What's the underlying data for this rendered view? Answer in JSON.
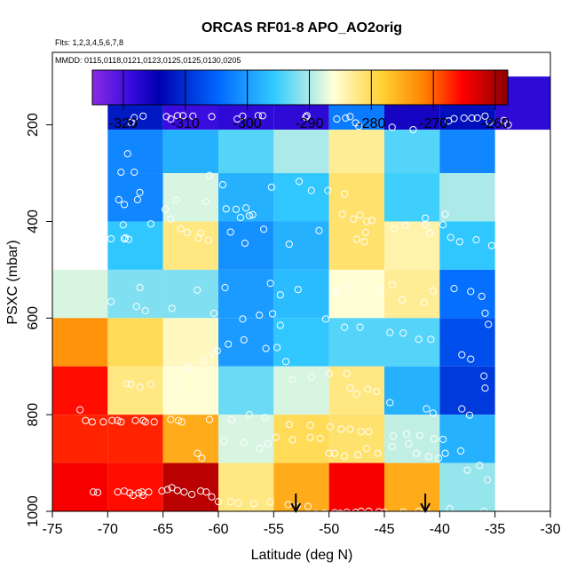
{
  "chart_data": {
    "type": "heatmap",
    "title": "ORCAS RF01-8 APO_AO2orig",
    "subtitle_flights": "Flts: 1,2,3,4,5,6,7,8",
    "subtitle_dates": "MMDD: 0115,0118,0121,0123,0125,0125,0130,0205",
    "xlabel": "Latitude (deg N)",
    "ylabel": "PSXC (mbar)",
    "xlim": [
      -75,
      -30
    ],
    "ylim": [
      1000,
      50
    ],
    "x_ticks": [
      -75,
      -70,
      -65,
      -60,
      -55,
      -50,
      -45,
      -40,
      -35,
      -30
    ],
    "y_ticks": [
      200,
      400,
      600,
      800,
      1000
    ],
    "colorbar": {
      "min": -325,
      "max": -258,
      "ticks": [
        -320,
        -310,
        -300,
        -290,
        -280,
        -270,
        -260
      ]
    },
    "lat_edges": [
      -75,
      -70,
      -65,
      -60,
      -55,
      -50,
      -45,
      -40,
      -35,
      -30
    ],
    "pressure_bins": [
      {
        "top": 100,
        "bottom": 210,
        "values": [
          null,
          -312,
          -319,
          -318,
          -318,
          -303,
          -316,
          -313,
          -318
        ]
      },
      {
        "top": 210,
        "bottom": 300,
        "values": [
          null,
          -302,
          -298,
          -294,
          -290,
          -283,
          -294,
          -302,
          null
        ]
      },
      {
        "top": 300,
        "bottom": 400,
        "values": [
          null,
          -302,
          -288,
          -298,
          -296,
          -281,
          -295,
          -290,
          null
        ]
      },
      {
        "top": 400,
        "bottom": 500,
        "values": [
          null,
          -296,
          -282,
          -301,
          -298,
          -281,
          -284,
          -296,
          null
        ]
      },
      {
        "top": 500,
        "bottom": 600,
        "values": [
          -288,
          -292,
          -292,
          -300,
          -297,
          -286,
          -283,
          -304,
          null
        ]
      },
      {
        "top": 600,
        "bottom": 700,
        "values": [
          -273,
          -280,
          -285,
          -300,
          -296,
          -294,
          -294,
          -307,
          null
        ]
      },
      {
        "top": 700,
        "bottom": 800,
        "values": [
          -266,
          -282,
          -286,
          -293,
          -288,
          -282,
          -298,
          -309,
          null
        ]
      },
      {
        "top": 800,
        "bottom": 900,
        "values": [
          -267,
          -267,
          -275,
          -288,
          -280,
          -281,
          -289,
          -298,
          null
        ]
      },
      {
        "top": 900,
        "bottom": 1000,
        "values": [
          -265,
          -266,
          -261,
          -282,
          -275,
          -265,
          -275,
          -291,
          null
        ]
      }
    ],
    "wind_arrows_lat": [
      -53,
      -41.3
    ],
    "observations": [
      [
        -67.6,
        185
      ],
      [
        -67.9,
        195
      ],
      [
        -66.8,
        182
      ],
      [
        -64.7,
        183
      ],
      [
        -64.3,
        188
      ],
      [
        -63.7,
        181
      ],
      [
        -63.2,
        181
      ],
      [
        -62.3,
        182
      ],
      [
        -60.6,
        183
      ],
      [
        -58.3,
        188
      ],
      [
        -57.8,
        182
      ],
      [
        -56.4,
        181
      ],
      [
        -56.0,
        181
      ],
      [
        -52.0,
        181
      ],
      [
        -52.1,
        184
      ],
      [
        -49.3,
        188
      ],
      [
        -48.5,
        186
      ],
      [
        -48.1,
        183
      ],
      [
        -47.6,
        196
      ],
      [
        -47.3,
        203
      ],
      [
        -44.3,
        205
      ],
      [
        -42.4,
        210
      ],
      [
        -39.2,
        192
      ],
      [
        -38.7,
        187
      ],
      [
        -37.8,
        186
      ],
      [
        -37.1,
        186
      ],
      [
        -36.6,
        186
      ],
      [
        -35.9,
        182
      ],
      [
        -35.5,
        194
      ],
      [
        -34.2,
        191
      ],
      [
        -33.8,
        200
      ],
      [
        -68.2,
        260
      ],
      [
        -67.6,
        298
      ],
      [
        -68.8,
        298
      ],
      [
        -67.1,
        340
      ],
      [
        -69.0,
        355
      ],
      [
        -68.5,
        365
      ],
      [
        -68.6,
        407
      ],
      [
        -68.5,
        436
      ],
      [
        -69.7,
        436
      ],
      [
        -67.3,
        355
      ],
      [
        -63.8,
        356
      ],
      [
        -61.1,
        359
      ],
      [
        -64.8,
        375
      ],
      [
        -64.3,
        395
      ],
      [
        -60.8,
        305
      ],
      [
        -59.6,
        324
      ],
      [
        -59.3,
        374
      ],
      [
        -58.4,
        375
      ],
      [
        -58.0,
        392
      ],
      [
        -57.2,
        388
      ],
      [
        -57.5,
        372
      ],
      [
        -56.9,
        386
      ],
      [
        -55.2,
        329
      ],
      [
        -52.7,
        317
      ],
      [
        -51.6,
        336
      ],
      [
        -50.1,
        336
      ],
      [
        -48.6,
        343
      ],
      [
        -48.8,
        385
      ],
      [
        -47.2,
        387
      ],
      [
        -47.8,
        395
      ],
      [
        -46.6,
        400
      ],
      [
        -46.1,
        398
      ],
      [
        -43.1,
        408
      ],
      [
        -41.3,
        393
      ],
      [
        -39.7,
        407
      ],
      [
        -39.5,
        385
      ],
      [
        -39.0,
        433
      ],
      [
        -68.4,
        434
      ],
      [
        -68.1,
        437
      ],
      [
        -66.1,
        405
      ],
      [
        -63.4,
        415
      ],
      [
        -62.8,
        423
      ],
      [
        -61.6,
        424
      ],
      [
        -61.8,
        434
      ],
      [
        -60.9,
        439
      ],
      [
        -58.9,
        422
      ],
      [
        -57.6,
        445
      ],
      [
        -55.9,
        416
      ],
      [
        -53.6,
        447
      ],
      [
        -50.9,
        419
      ],
      [
        -47.5,
        437
      ],
      [
        -46.8,
        442
      ],
      [
        -46.7,
        423
      ],
      [
        -44.1,
        415
      ],
      [
        -41.3,
        407
      ],
      [
        -40.9,
        424
      ],
      [
        -38.2,
        442
      ],
      [
        -36.7,
        438
      ],
      [
        -35.3,
        450
      ],
      [
        -67.1,
        537
      ],
      [
        -66.6,
        585
      ],
      [
        -69.7,
        566
      ],
      [
        -61.9,
        542
      ],
      [
        -59.4,
        537
      ],
      [
        -55.3,
        528
      ],
      [
        -54.4,
        552
      ],
      [
        -52.8,
        541
      ],
      [
        -49.4,
        546
      ],
      [
        -48.2,
        538
      ],
      [
        -45.4,
        542
      ],
      [
        -44.3,
        531
      ],
      [
        -43.4,
        562
      ],
      [
        -41.4,
        568
      ],
      [
        -40.6,
        544
      ],
      [
        -38.7,
        539
      ],
      [
        -37.2,
        545
      ],
      [
        -36.2,
        555
      ],
      [
        -35.9,
        590
      ],
      [
        -35.6,
        613
      ],
      [
        -34.5,
        590
      ],
      [
        -33.4,
        625
      ],
      [
        -67.4,
        576
      ],
      [
        -64.2,
        580
      ],
      [
        -60.4,
        590
      ],
      [
        -57.8,
        602
      ],
      [
        -56.3,
        594
      ],
      [
        -55.1,
        591
      ],
      [
        -54.4,
        615
      ],
      [
        -50.3,
        602
      ],
      [
        -48.6,
        619
      ],
      [
        -47.2,
        619
      ],
      [
        -44.5,
        630
      ],
      [
        -43.3,
        631
      ],
      [
        -41.9,
        644
      ],
      [
        -40.8,
        644
      ],
      [
        -38.0,
        676
      ],
      [
        -37.2,
        685
      ],
      [
        -36.0,
        720
      ],
      [
        -35.9,
        745
      ],
      [
        -34.3,
        772
      ],
      [
        -68.3,
        736
      ],
      [
        -67.9,
        737
      ],
      [
        -67.1,
        743
      ],
      [
        -66.1,
        737
      ],
      [
        -63.8,
        737
      ],
      [
        -62.7,
        702
      ],
      [
        -61.4,
        688
      ],
      [
        -60.5,
        672
      ],
      [
        -60.1,
        668
      ],
      [
        -59.1,
        654
      ],
      [
        -57.7,
        645
      ],
      [
        -55.7,
        663
      ],
      [
        -54.7,
        661
      ],
      [
        -53.9,
        690
      ],
      [
        -53.3,
        727
      ],
      [
        -51.6,
        722
      ],
      [
        -50.0,
        715
      ],
      [
        -48.4,
        715
      ],
      [
        -48.1,
        745
      ],
      [
        -47.5,
        757
      ],
      [
        -46.5,
        747
      ],
      [
        -45.7,
        752
      ],
      [
        -44.5,
        775
      ],
      [
        -41.2,
        788
      ],
      [
        -40.6,
        797
      ],
      [
        -38.0,
        788
      ],
      [
        -37.3,
        801
      ],
      [
        -72.5,
        790
      ],
      [
        -72.0,
        812
      ],
      [
        -71.4,
        815
      ],
      [
        -70.4,
        815
      ],
      [
        -69.6,
        812
      ],
      [
        -69.1,
        812
      ],
      [
        -68.8,
        815
      ],
      [
        -67.5,
        812
      ],
      [
        -66.8,
        812
      ],
      [
        -66.6,
        815
      ],
      [
        -65.8,
        815
      ],
      [
        -64.3,
        810
      ],
      [
        -63.6,
        812
      ],
      [
        -63.3,
        815
      ],
      [
        -60.8,
        810
      ],
      [
        -58.8,
        810
      ],
      [
        -57.2,
        800
      ],
      [
        -55.8,
        806
      ],
      [
        -53.6,
        820
      ],
      [
        -51.7,
        822
      ],
      [
        -49.9,
        825
      ],
      [
        -48.9,
        830
      ],
      [
        -48.1,
        830
      ],
      [
        -47.1,
        835
      ],
      [
        -46.4,
        835
      ],
      [
        -44.2,
        844
      ],
      [
        -43.0,
        840
      ],
      [
        -41.8,
        843
      ],
      [
        -40.5,
        850
      ],
      [
        -39.7,
        851
      ],
      [
        -38.1,
        875
      ],
      [
        -61.9,
        880
      ],
      [
        -61.5,
        890
      ],
      [
        -59.5,
        855
      ],
      [
        -57.7,
        858
      ],
      [
        -56.3,
        870
      ],
      [
        -55.5,
        860
      ],
      [
        -54.8,
        847
      ],
      [
        -53.3,
        852
      ],
      [
        -51.7,
        847
      ],
      [
        -50.8,
        849
      ],
      [
        -50.0,
        880
      ],
      [
        -49.5,
        880
      ],
      [
        -48.6,
        886
      ],
      [
        -47.4,
        883
      ],
      [
        -46.6,
        870
      ],
      [
        -45.6,
        880
      ],
      [
        -44.3,
        866
      ],
      [
        -42.8,
        860
      ],
      [
        -42.1,
        880
      ],
      [
        -41.0,
        887
      ],
      [
        -40.1,
        890
      ],
      [
        -39.5,
        880
      ],
      [
        -37.5,
        915
      ],
      [
        -36.4,
        905
      ],
      [
        -35.7,
        935
      ],
      [
        -71.3,
        960
      ],
      [
        -70.9,
        961
      ],
      [
        -69.1,
        960
      ],
      [
        -68.5,
        958
      ],
      [
        -68.0,
        962
      ],
      [
        -67.7,
        967
      ],
      [
        -67.2,
        962
      ],
      [
        -66.9,
        960
      ],
      [
        -66.8,
        967
      ],
      [
        -66.3,
        960
      ],
      [
        -65.1,
        958
      ],
      [
        -64.6,
        955
      ],
      [
        -64.2,
        951
      ],
      [
        -63.7,
        957
      ],
      [
        -63.1,
        960
      ],
      [
        -62.4,
        965
      ],
      [
        -61.6,
        958
      ],
      [
        -61.1,
        960
      ],
      [
        -60.6,
        970
      ],
      [
        -60.0,
        980
      ],
      [
        -58.9,
        980
      ],
      [
        -58.2,
        983
      ],
      [
        -56.8,
        984
      ],
      [
        -55.3,
        981
      ],
      [
        -53.7,
        986
      ],
      [
        -52.9,
        990
      ],
      [
        -51.9,
        990
      ],
      [
        -51.2,
        1005
      ],
      [
        -50.4,
        1004
      ],
      [
        -49.5,
        1003
      ],
      [
        -49.0,
        1004
      ],
      [
        -48.4,
        1002
      ],
      [
        -47.6,
        1002
      ],
      [
        -47.1,
        1000
      ],
      [
        -46.4,
        1000
      ],
      [
        -45.5,
        1001
      ],
      [
        -45.0,
        1002
      ],
      [
        -43.3,
        1001
      ],
      [
        -41.9,
        1000
      ],
      [
        -41.2,
        999
      ],
      [
        -39.1,
        995
      ],
      [
        -36.0,
        1000
      ]
    ]
  }
}
